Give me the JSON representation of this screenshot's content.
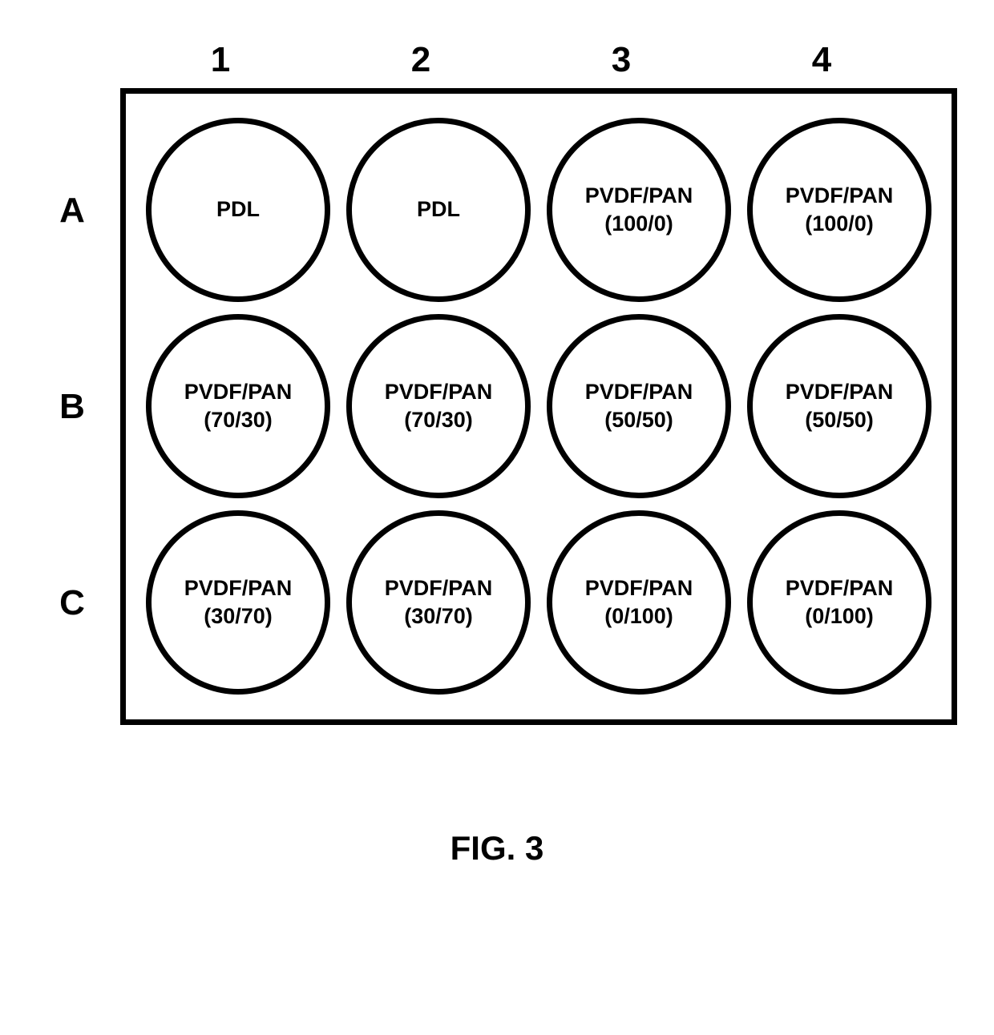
{
  "diagram": {
    "type": "well-plate",
    "columns": [
      "1",
      "2",
      "3",
      "4"
    ],
    "rows": [
      "A",
      "B",
      "C"
    ],
    "wells": [
      [
        {
          "label": "PDL",
          "ratio": ""
        },
        {
          "label": "PDL",
          "ratio": ""
        },
        {
          "label": "PVDF/PAN",
          "ratio": "(100/0)"
        },
        {
          "label": "PVDF/PAN",
          "ratio": "(100/0)"
        }
      ],
      [
        {
          "label": "PVDF/PAN",
          "ratio": "(70/30)"
        },
        {
          "label": "PVDF/PAN",
          "ratio": "(70/30)"
        },
        {
          "label": "PVDF/PAN",
          "ratio": "(50/50)"
        },
        {
          "label": "PVDF/PAN",
          "ratio": "(50/50)"
        }
      ],
      [
        {
          "label": "PVDF/PAN",
          "ratio": "(30/70)"
        },
        {
          "label": "PVDF/PAN",
          "ratio": "(30/70)"
        },
        {
          "label": "PVDF/PAN",
          "ratio": "(0/100)"
        },
        {
          "label": "PVDF/PAN",
          "ratio": "(0/100)"
        }
      ]
    ],
    "caption": "FIG. 3",
    "styling": {
      "border_color": "#000000",
      "border_width": 7,
      "well_diameter": 230,
      "background_color": "#ffffff",
      "text_color": "#000000",
      "header_fontsize": 44,
      "well_label_fontsize": 27,
      "caption_fontsize": 42,
      "font_weight": "bold"
    }
  }
}
